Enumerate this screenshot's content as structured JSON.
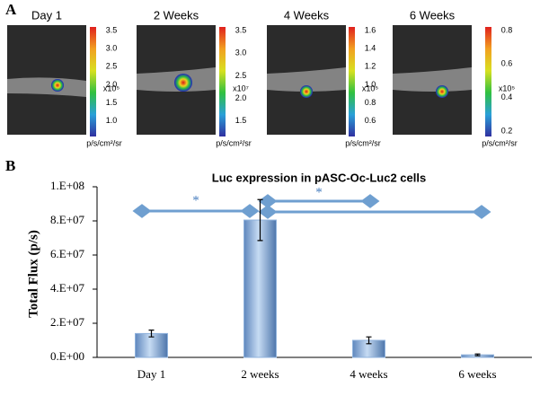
{
  "panel_labels": [
    "A",
    "B"
  ],
  "panel_a": {
    "images": [
      {
        "title": "Day 1",
        "colorbar_ticks": [
          "3.5",
          "3.0",
          "2.5",
          "2.0",
          "1.5",
          "1.0"
        ],
        "scale": "x10⁵",
        "unit": "p/s/cm²/sr"
      },
      {
        "title": "2 Weeks",
        "colorbar_ticks": [
          "3.5",
          "3.0",
          "2.5",
          "2.0",
          "1.5"
        ],
        "scale": "x10⁷",
        "unit": "p/s/cm²/sr"
      },
      {
        "title": "4 Weeks",
        "colorbar_ticks": [
          "1.6",
          "1.4",
          "1.2",
          "1.0",
          "0.8",
          "0.6"
        ],
        "scale": "x10⁵",
        "unit": "p/s/cm²/sr"
      },
      {
        "title": "6 Weeks",
        "colorbar_ticks": [
          "0.8",
          "0.6",
          "0.4",
          "0.2"
        ],
        "scale": "x10⁵",
        "unit": "p/s/cm²/sr"
      }
    ]
  },
  "chart_data": {
    "type": "bar",
    "title": "Luc expression in pASC-Oc-Luc2 cells",
    "y_label": "Total Flux (p/s)",
    "categories": [
      "Day 1",
      "2 weeks",
      "4 weeks",
      "6 weeks"
    ],
    "values": [
      14000000,
      80500000,
      10000000,
      1500000
    ],
    "errors": [
      2000000,
      12000000,
      2000000,
      500000
    ],
    "color": "#8fb2dc",
    "ylim": [
      0,
      100000000
    ],
    "yticks": [
      {
        "value": 0,
        "label": "0.E+00"
      },
      {
        "value": 20000000,
        "label": "2.E+07"
      },
      {
        "value": 40000000,
        "label": "4.E+07"
      },
      {
        "value": 60000000,
        "label": "6.E+07"
      },
      {
        "value": 80000000,
        "label": "8.E+07"
      },
      {
        "value": 100000000,
        "label": "1.E+08"
      }
    ],
    "annotations": [
      "*",
      "*"
    ]
  }
}
